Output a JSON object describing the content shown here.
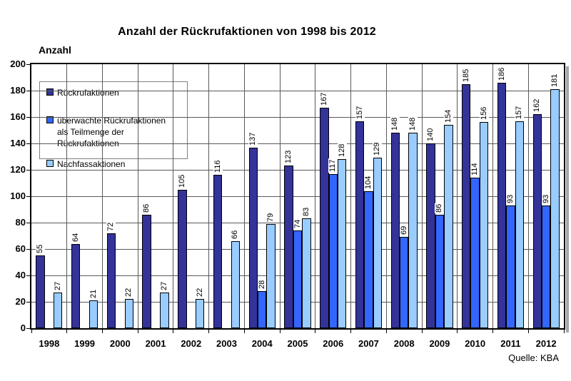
{
  "title": "Anzahl der Rückrufaktionen von 1998 bis 2012",
  "y_axis_title": "Anzahl",
  "source": "Quelle: KBA",
  "legend": {
    "items": [
      {
        "label": "Rückrufaktionen",
        "color": "#333399"
      },
      {
        "label": "überwachte Rückrufaktionen",
        "label2": "als Teilmenge der Rückrufaktionen",
        "color": "#3366FF"
      },
      {
        "label": "Nachfassaktionen",
        "color": "#99CCFF"
      }
    ]
  },
  "chart_data": {
    "type": "bar",
    "title": "Anzahl der Rückrufaktionen von 1998 bis 2012",
    "xlabel": "",
    "ylabel": "Anzahl",
    "ylim": [
      0,
      200
    ],
    "ytick_step": 20,
    "grid": true,
    "legend_position": "upper-left-inside",
    "bar_value_labels": "rotated-90",
    "source": "Quelle: KBA",
    "categories": [
      "1998",
      "1999",
      "2000",
      "2001",
      "2002",
      "2003",
      "2004",
      "2005",
      "2006",
      "2007",
      "2008",
      "2009",
      "2010",
      "2011",
      "2012"
    ],
    "series": [
      {
        "name": "Rückrufaktionen",
        "color": "#333399",
        "values": [
          55,
          64,
          72,
          86,
          105,
          116,
          137,
          123,
          167,
          157,
          148,
          140,
          185,
          186,
          162
        ]
      },
      {
        "name": "überwachte Rückrufaktionen als Teilmenge der Rückrufaktionen",
        "color": "#3366FF",
        "values": [
          null,
          null,
          null,
          null,
          null,
          null,
          28,
          74,
          117,
          104,
          69,
          86,
          114,
          93,
          93
        ]
      },
      {
        "name": "Nachfassaktionen",
        "color": "#99CCFF",
        "values": [
          27,
          21,
          22,
          27,
          22,
          66,
          79,
          83,
          128,
          129,
          148,
          154,
          156,
          157,
          181
        ]
      }
    ]
  }
}
